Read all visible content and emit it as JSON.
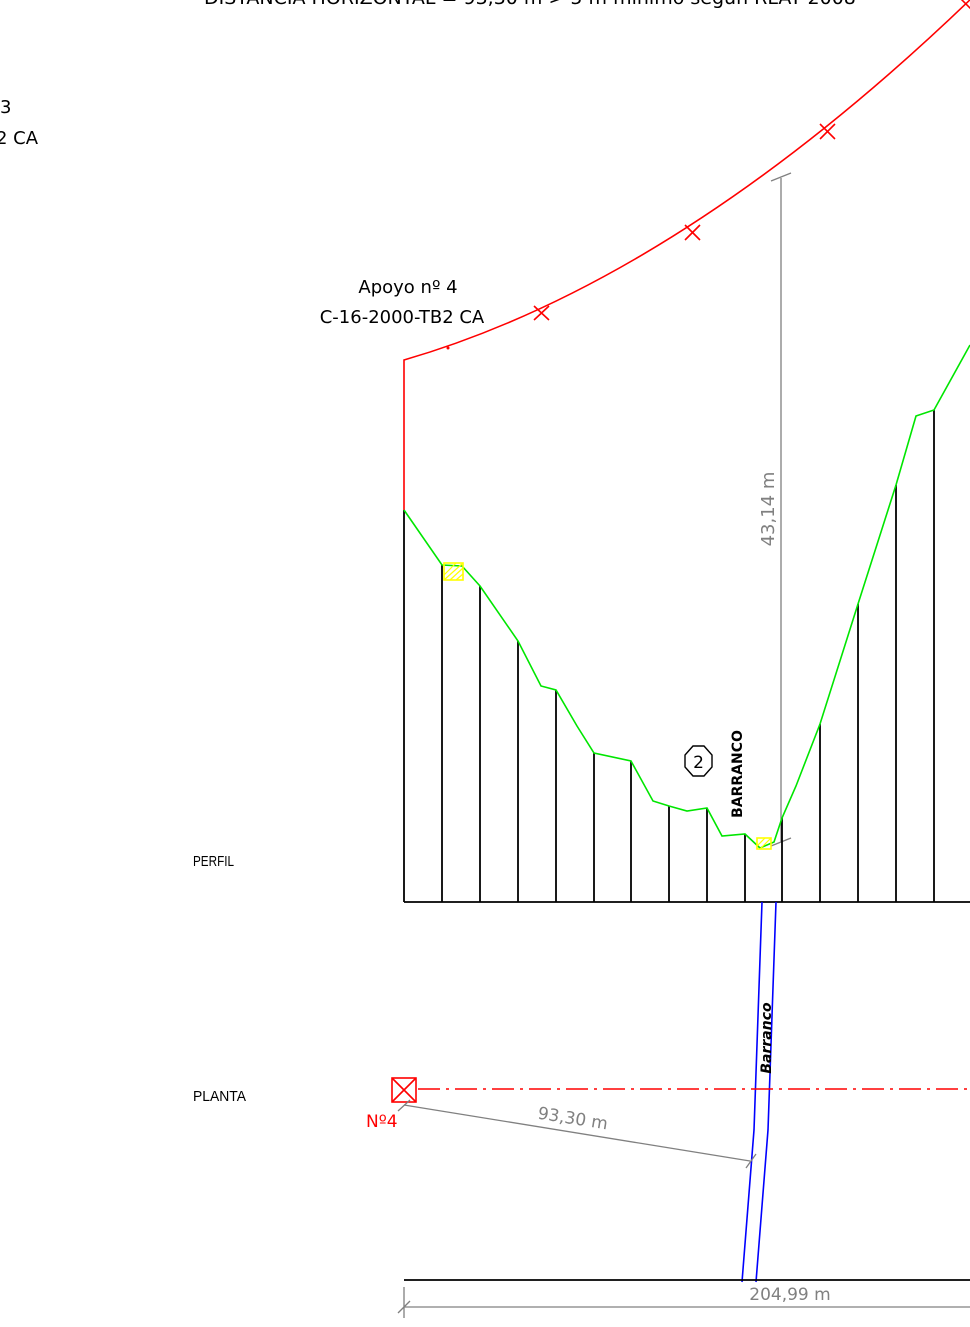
{
  "header": {
    "distance_note": "DISTANCIA HORIZONTAL = 93,30 m > 5 m mínimo según RLAT 2008"
  },
  "left_cut": {
    "line1": "3",
    "line2": "2 CA"
  },
  "support": {
    "title": "Apoyo nº 4",
    "model": "C-16-2000-TB2 CA",
    "plan_label": "Nº4"
  },
  "profile": {
    "section_label": "PERFIL",
    "crossing_label": "BARRANCO",
    "crossing_number": "2",
    "clearance": "43,14 m"
  },
  "plan": {
    "section_label": "PLANTA",
    "stream_label": "Barranco",
    "distance": "93,30 m",
    "total_length": "204,99 m"
  },
  "colors": {
    "conductor": "#ff0000",
    "terrain": "#00e600",
    "stream": "#0000ff",
    "marker": "#ffff00",
    "dimension": "#808080"
  }
}
